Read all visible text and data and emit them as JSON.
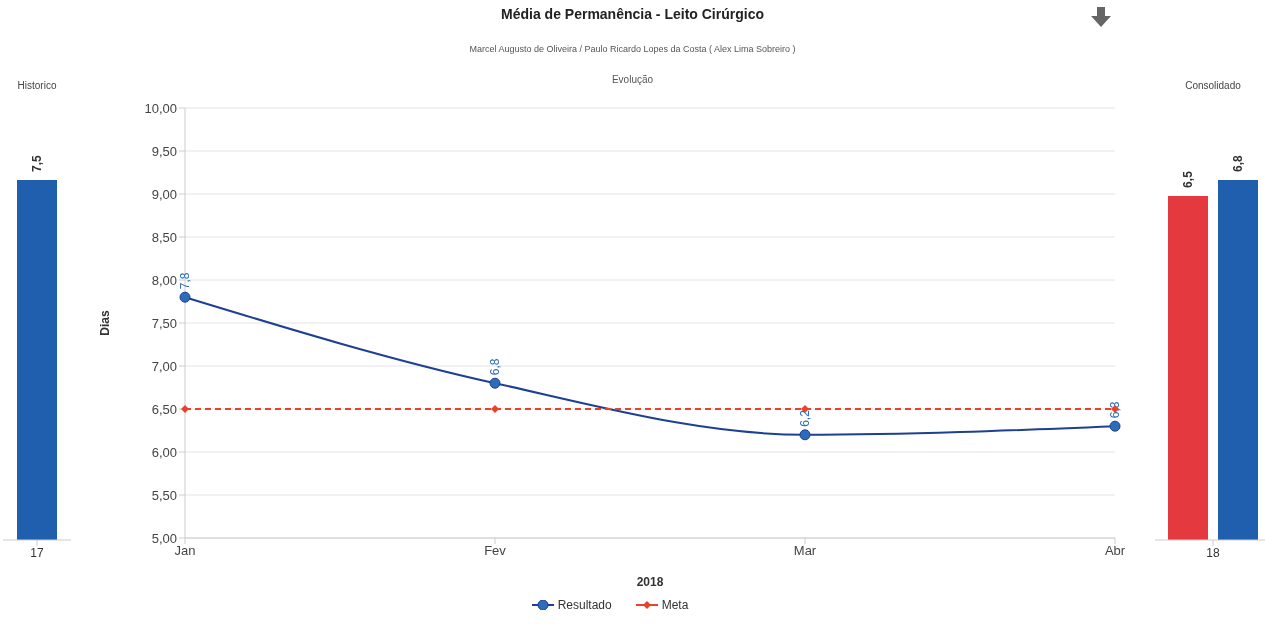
{
  "chart_data": [
    {
      "type": "bar",
      "title": "Historico",
      "categories": [
        "17"
      ],
      "tick_labels": "x",
      "series": [
        {
          "color": "#1f5fae",
          "values": [
            7.5
          ],
          "value_labels": [
            "7,5"
          ]
        }
      ]
    },
    {
      "type": "line",
      "title": "Média de Permanência - Leito Cirúrgico",
      "subtitle": "Marcel Augusto de Oliveira / Paulo Ricardo Lopes da Costa ( Alex Lima Sobreiro )",
      "annotations": [
        "Evolução"
      ],
      "xlabel": "2018",
      "ylabel": "Dias",
      "categories": [
        "Jan",
        "Fev",
        "Mar",
        "Abr"
      ],
      "ylim": [
        5,
        10
      ],
      "yticks": [
        {
          "value": 5,
          "label": "5,00"
        },
        {
          "value": 5.5,
          "label": "5,50"
        },
        {
          "value": 6,
          "label": "6,00"
        },
        {
          "value": 6.5,
          "label": "6,50"
        },
        {
          "value": 7,
          "label": "7,00"
        },
        {
          "value": 7.5,
          "label": "7,50"
        },
        {
          "value": 8,
          "label": "8,00"
        },
        {
          "value": 8.5,
          "label": "8,50"
        },
        {
          "value": 9,
          "label": "9,00"
        },
        {
          "value": 9.5,
          "label": "9,50"
        },
        {
          "value": 10,
          "label": "10,00"
        }
      ],
      "grid": "y",
      "legend": "bottom",
      "series": [
        {
          "name": "Resultado",
          "color": "#1d3f94",
          "values": [
            7.8,
            6.8,
            6.2,
            6.3
          ],
          "value_labels": [
            "7,8",
            "6,8",
            "6,2",
            "6,3"
          ],
          "marker": "circle",
          "line_style": "solid"
        },
        {
          "name": "Meta",
          "color": "#e8432a",
          "values": [
            6.5,
            6.5,
            6.5,
            6.5
          ],
          "marker": "diamond",
          "line_style": "dashed"
        }
      ]
    },
    {
      "type": "bar",
      "title": "Consolidado",
      "categories": [
        "18"
      ],
      "tick_labels": "x",
      "series": [
        {
          "color": "#e43a3f",
          "values": [
            6.5
          ],
          "value_labels": [
            "6,5"
          ]
        },
        {
          "color": "#1f5fae",
          "values": [
            6.8
          ],
          "value_labels": [
            "6,8"
          ]
        }
      ]
    }
  ]
}
